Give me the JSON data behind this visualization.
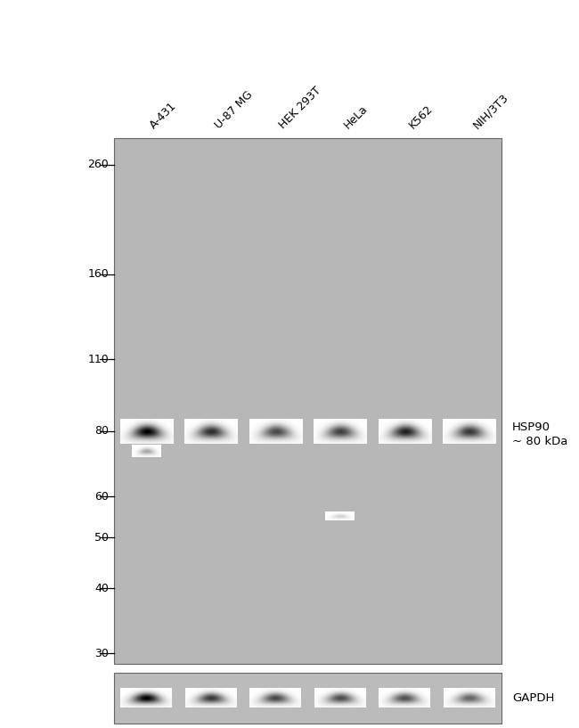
{
  "figure_bg": "#ffffff",
  "main_panel_bg_color": [
    0.718,
    0.718,
    0.718
  ],
  "gapdh_panel_bg_color": [
    0.725,
    0.725,
    0.725
  ],
  "sample_labels": [
    "A-431",
    "U-87 MG",
    "HEK 293T",
    "HeLa",
    "K562",
    "NIH/3T3"
  ],
  "mw_markers": [
    260,
    160,
    110,
    80,
    60,
    50,
    40,
    30
  ],
  "hsp90_label": "HSP90",
  "hsp90_kda": "~ 80 kDa",
  "gapdh_label": "GAPDH",
  "n_lanes": 6,
  "main_band_intensities": [
    1.0,
    0.82,
    0.72,
    0.75,
    0.88,
    0.78
  ],
  "gapdh_band_intensities": [
    1.0,
    0.78,
    0.72,
    0.7,
    0.68,
    0.6
  ],
  "font_size_labels": 9,
  "font_size_mw": 9
}
